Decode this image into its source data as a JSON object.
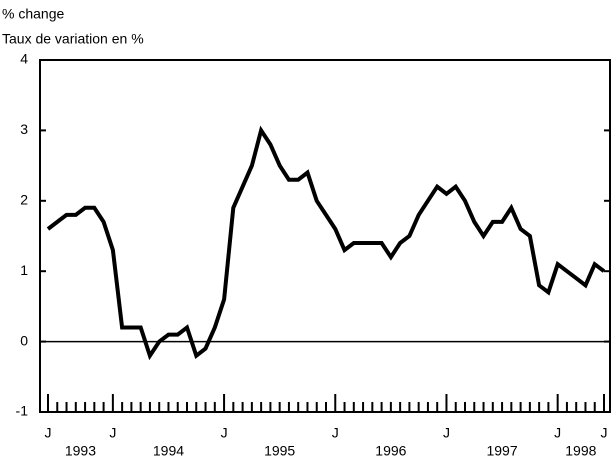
{
  "chart_data": {
    "type": "line",
    "y_axis_label": "% change",
    "y_axis_label_fr": "Taux de variation en %",
    "categories": [
      "J",
      null,
      null,
      null,
      null,
      null,
      null,
      "J",
      null,
      null,
      null,
      null,
      null,
      null,
      null,
      null,
      null,
      null,
      null,
      "J",
      null,
      null,
      null,
      null,
      null,
      null,
      null,
      null,
      null,
      null,
      null,
      "J",
      null,
      null,
      null,
      null,
      null,
      null,
      null,
      null,
      null,
      null,
      null,
      "J",
      null,
      null,
      null,
      null,
      null,
      null,
      null,
      null,
      null,
      null,
      null,
      "J",
      null,
      null,
      null,
      null,
      "J"
    ],
    "years": [
      "1993",
      "1994",
      "1995",
      "1996",
      "1997",
      "1998"
    ],
    "series": [
      {
        "name": "% change",
        "color": "#000000",
        "values": [
          1.6,
          1.7,
          1.8,
          1.8,
          1.9,
          1.9,
          1.7,
          1.3,
          0.2,
          0.2,
          0.2,
          -0.2,
          0.0,
          0.1,
          0.1,
          0.2,
          -0.2,
          -0.1,
          0.2,
          0.6,
          1.9,
          2.2,
          2.5,
          3.0,
          2.8,
          2.5,
          2.3,
          2.3,
          2.4,
          2.0,
          1.8,
          1.6,
          1.3,
          1.4,
          1.4,
          1.4,
          1.4,
          1.2,
          1.4,
          1.5,
          1.8,
          2.0,
          2.2,
          2.1,
          2.2,
          2.0,
          1.7,
          1.5,
          1.7,
          1.7,
          1.9,
          1.6,
          1.5,
          0.8,
          0.7,
          1.1,
          1.0,
          0.9,
          0.8,
          1.1,
          1.0
        ]
      }
    ],
    "ylim": [
      -1,
      4
    ],
    "yticks": [
      -1,
      0,
      1,
      2,
      3,
      4
    ],
    "zero_line": true
  }
}
